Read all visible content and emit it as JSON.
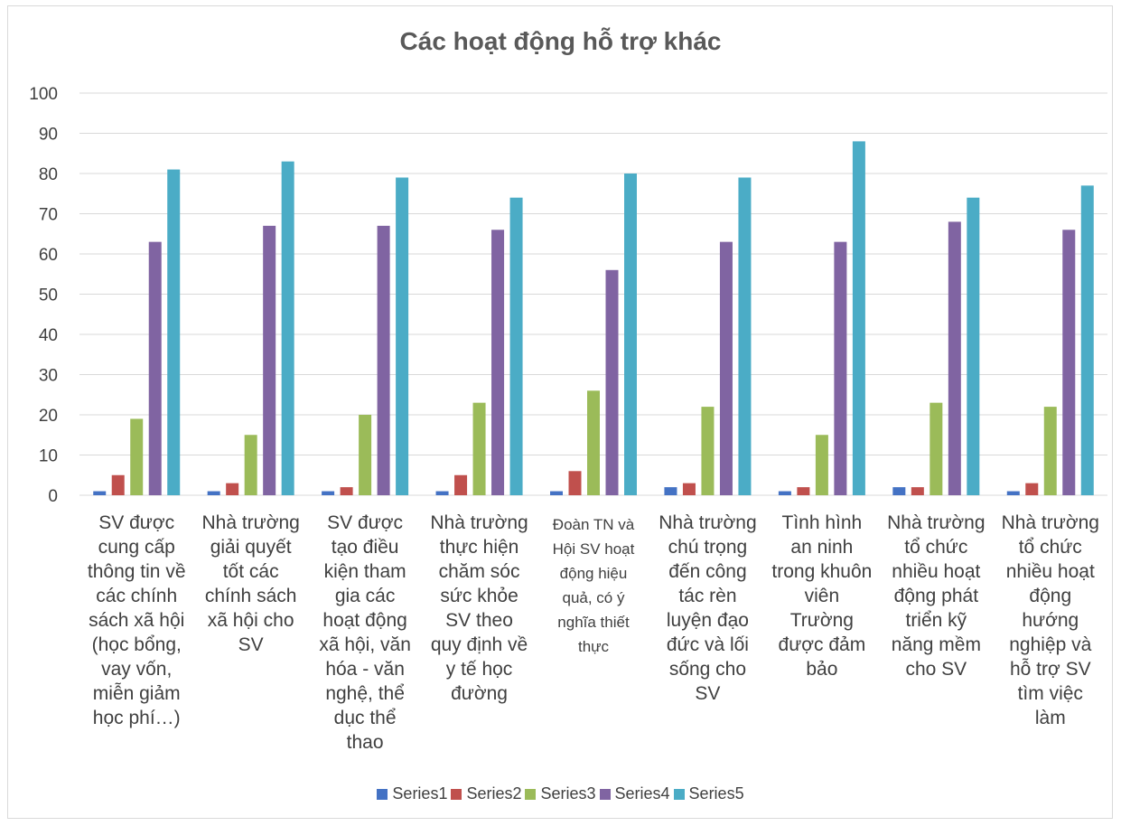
{
  "chart_data": {
    "type": "bar",
    "title": "Các hoạt động hỗ trợ khác",
    "xlabel": "",
    "ylabel": "",
    "ylim": [
      0,
      100
    ],
    "yticks": [
      0,
      10,
      20,
      30,
      40,
      50,
      60,
      70,
      80,
      90,
      100
    ],
    "grid": true,
    "legend_position": "bottom",
    "categories": [
      "SV được cung cấp thông tin về các chính sách xã hội (học bổng, vay vốn, miễn giảm học phí…)",
      "Nhà trường giải quyết tốt các chính sách xã hội cho SV",
      "SV được tạo điều kiện tham gia các hoạt động xã hội, văn hóa - văn nghệ, thể dục thể thao",
      "Nhà trường thực hiện chăm sóc sức khỏe SV theo quy định về y tế học đường",
      "Đoàn TN và Hội SV hoạt động hiệu quả, có ý nghĩa thiết thực",
      "Nhà trường chú trọng đến công tác rèn luyện đạo đức và lối sống cho SV",
      "Tình hình an ninh trong khuôn viên Trường được đảm bảo",
      "Nhà trường tổ chức nhiều hoạt động phát triển kỹ năng mềm cho SV",
      "Nhà trường tổ chức nhiều hoạt động hướng nghiệp và hỗ trợ SV tìm việc làm"
    ],
    "category_lines": [
      [
        "SV được",
        "cung cấp",
        "thông tin về",
        "các chính",
        "sách xã hội",
        "(học bổng,",
        "vay vốn,",
        "miễn giảm",
        "học phí…)"
      ],
      [
        "Nhà trường",
        "giải quyết",
        "tốt các",
        "chính sách",
        "xã hội cho",
        "SV"
      ],
      [
        "SV được",
        "tạo điều",
        "kiện tham",
        "gia các",
        "hoạt động",
        "xã hội, văn",
        "hóa - văn",
        "nghệ, thể",
        "dục thể",
        "thao"
      ],
      [
        "Nhà trường",
        "thực hiện",
        "chăm sóc",
        "sức khỏe",
        "SV theo",
        "quy định về",
        "y tế học",
        "đường"
      ],
      [
        "Đoàn TN và",
        "Hội SV hoạt",
        "động hiệu",
        "quả, có ý",
        "nghĩa thiết",
        "thực"
      ],
      [
        "Nhà trường",
        "chú trọng",
        "đến công",
        "tác rèn",
        "luyện đạo",
        "đức và lối",
        "sống cho",
        "SV"
      ],
      [
        "Tình hình",
        "an ninh",
        "trong khuôn",
        "viên",
        "Trường",
        "được đảm",
        "bảo"
      ],
      [
        "Nhà trường",
        "tổ chức",
        "nhiều hoạt",
        "động phát",
        "triển kỹ",
        "năng mềm",
        "cho SV"
      ],
      [
        "Nhà trường",
        "tổ chức",
        "nhiều hoạt",
        "động",
        "hướng",
        "nghiệp và",
        "hỗ trợ SV",
        "tìm việc",
        "làm"
      ]
    ],
    "series": [
      {
        "name": "Series1",
        "color": "#4472c4",
        "values": [
          1,
          1,
          1,
          1,
          1,
          2,
          1,
          2,
          1
        ]
      },
      {
        "name": "Series2",
        "color": "#c0504d",
        "values": [
          5,
          3,
          2,
          5,
          6,
          3,
          2,
          2,
          3
        ]
      },
      {
        "name": "Series3",
        "color": "#9bbb59",
        "values": [
          19,
          15,
          20,
          23,
          26,
          22,
          15,
          23,
          22
        ]
      },
      {
        "name": "Series4",
        "color": "#8064a2",
        "values": [
          63,
          67,
          67,
          66,
          56,
          63,
          63,
          68,
          66
        ]
      },
      {
        "name": "Series5",
        "color": "#4bacc6",
        "values": [
          81,
          83,
          79,
          74,
          80,
          79,
          88,
          74,
          77
        ]
      }
    ]
  }
}
